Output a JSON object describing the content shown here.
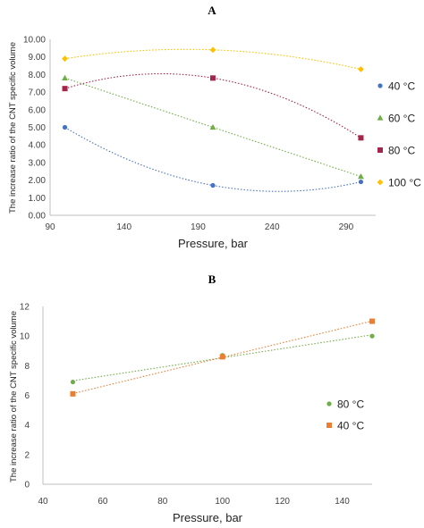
{
  "chart_data": [
    {
      "panel_label": "A",
      "type": "scatter",
      "xlabel": "Pressure, bar",
      "ylabel": "The increase ratio of the CNT specific volume",
      "xlim": [
        90,
        310
      ],
      "ylim": [
        0,
        10
      ],
      "xticks": [
        90,
        140,
        190,
        240,
        290
      ],
      "xtick_labels": [
        "90",
        "140",
        "190",
        "240",
        "290"
      ],
      "yticks": [
        0,
        1,
        2,
        3,
        4,
        5,
        6,
        7,
        8,
        9,
        10
      ],
      "ytick_labels": [
        "0.00",
        "1.00",
        "2.00",
        "3.00",
        "4.00",
        "5.00",
        "6.00",
        "7.00",
        "8.00",
        "9.00",
        "10.00"
      ],
      "grid": false,
      "legend_position": "right",
      "trendline": "polynomial-2 (dotted)",
      "series": [
        {
          "name": "40 °C",
          "marker": "circle",
          "color": "#4472C4",
          "x": [
            100,
            200,
            300
          ],
          "y": [
            5.0,
            1.7,
            1.9
          ]
        },
        {
          "name": "60 °C",
          "marker": "triangle",
          "color": "#70AD47",
          "x": [
            100,
            200,
            300
          ],
          "y": [
            7.8,
            5.0,
            2.2
          ]
        },
        {
          "name": "80 °C",
          "marker": "square",
          "color": "#A5264B",
          "x": [
            100,
            200,
            300
          ],
          "y": [
            7.2,
            7.8,
            4.4
          ]
        },
        {
          "name": "100 °C",
          "marker": "diamond",
          "color": "#FFC000",
          "x": [
            100,
            200,
            300
          ],
          "y": [
            8.9,
            9.4,
            8.3
          ]
        }
      ]
    },
    {
      "panel_label": "B",
      "type": "scatter",
      "xlabel": "Pressure, bar",
      "ylabel": "The increase ratio of the CNT specific volume",
      "xlim": [
        40,
        150
      ],
      "ylim": [
        0,
        12
      ],
      "xticks": [
        40,
        60,
        80,
        100,
        120,
        140
      ],
      "xtick_labels": [
        "40",
        "60",
        "80",
        "100",
        "120",
        "140"
      ],
      "yticks": [
        0,
        2,
        4,
        6,
        8,
        10,
        12
      ],
      "ytick_labels": [
        "0",
        "2",
        "4",
        "6",
        "8",
        "10",
        "12"
      ],
      "grid": false,
      "legend_position": "right",
      "trendline": "linear (dotted)",
      "series": [
        {
          "name": "80 °C",
          "marker": "circle",
          "color": "#70AD47",
          "x": [
            50,
            100,
            150
          ],
          "y": [
            6.9,
            8.7,
            10.0
          ]
        },
        {
          "name": "40 °C",
          "marker": "square",
          "color": "#ED7D31",
          "x": [
            50,
            100,
            150
          ],
          "y": [
            6.1,
            8.6,
            11.0
          ]
        }
      ]
    }
  ]
}
